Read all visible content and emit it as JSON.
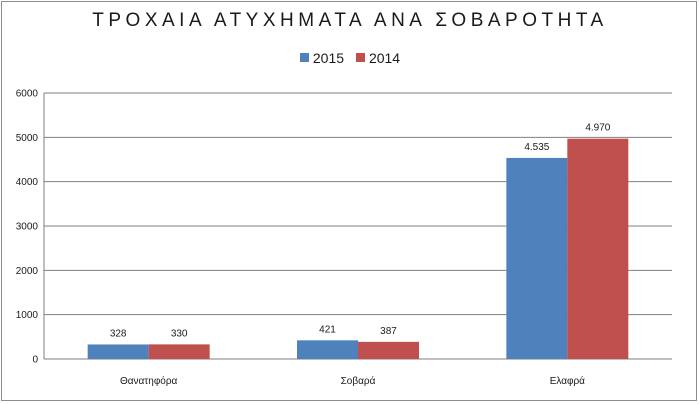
{
  "colors": {
    "s2015": "#4f81bd",
    "s2014": "#c0504d",
    "grid": "#7f7f7f"
  },
  "chart_data": {
    "type": "bar",
    "title": "ΤΡΟΧΑΙΑ ΑΤΥΧΗΜΑΤΑ ΑΝΑ ΣΟΒΑΡΟΤΗΤΑ",
    "categories": [
      "Θανατηφόρα",
      "Σοβαρά",
      "Ελαφρά"
    ],
    "series": [
      {
        "name": "2015",
        "values": [
          328,
          421,
          4535
        ],
        "labels": [
          "328",
          "421",
          "4.535"
        ]
      },
      {
        "name": "2014",
        "values": [
          330,
          387,
          4970
        ],
        "labels": [
          "330",
          "387",
          "4.970"
        ]
      }
    ],
    "ylim": [
      0,
      6000
    ],
    "yticks": [
      "0",
      "1000",
      "2000",
      "3000",
      "4000",
      "5000",
      "6000"
    ],
    "grid": true,
    "legend": "top-center"
  }
}
